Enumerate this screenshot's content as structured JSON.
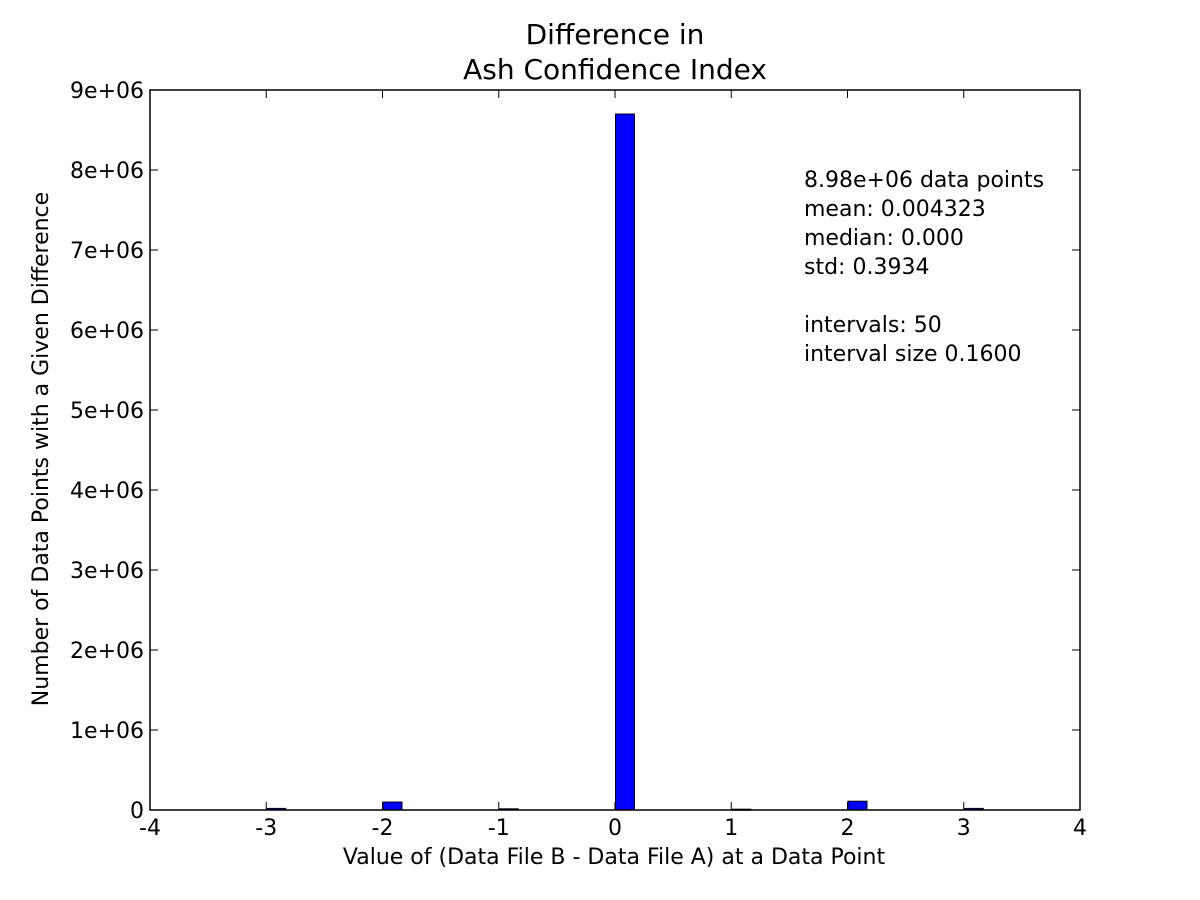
{
  "chart_data": {
    "type": "bar",
    "title_lines": [
      "Difference in",
      "Ash Confidence Index"
    ],
    "xlabel": "Value of (Data File B - Data File A) at a Data Point",
    "ylabel": "Number of Data Points with a Given Difference",
    "xlim": [
      -4,
      4
    ],
    "ylim": [
      0,
      9000000
    ],
    "x_ticks": [
      -4,
      -3,
      -2,
      -1,
      0,
      1,
      2,
      3,
      4
    ],
    "x_tick_labels": [
      "-4",
      "-3",
      "-2",
      "-1",
      "0",
      "1",
      "2",
      "3",
      "4"
    ],
    "y_ticks": [
      0,
      1000000,
      2000000,
      3000000,
      4000000,
      5000000,
      6000000,
      7000000,
      8000000,
      9000000
    ],
    "y_tick_labels": [
      "0",
      "1e+06",
      "2e+06",
      "3e+06",
      "4e+06",
      "5e+06",
      "6e+06",
      "7e+06",
      "8e+06",
      "9e+06"
    ],
    "grid": false,
    "bar_color": "#0000ff",
    "bars": [
      {
        "x": -3,
        "value": 20000
      },
      {
        "x": -2,
        "value": 100000
      },
      {
        "x": -1,
        "value": 15000
      },
      {
        "x": 0,
        "value": 8700000
      },
      {
        "x": 1,
        "value": 10000
      },
      {
        "x": 2,
        "value": 110000
      },
      {
        "x": 3,
        "value": 20000
      }
    ],
    "stats_lines": [
      "8.98e+06 data points",
      "mean: 0.004323",
      "median: 0.000",
      "std: 0.3934",
      "",
      "intervals: 50",
      "interval size 0.1600"
    ]
  }
}
